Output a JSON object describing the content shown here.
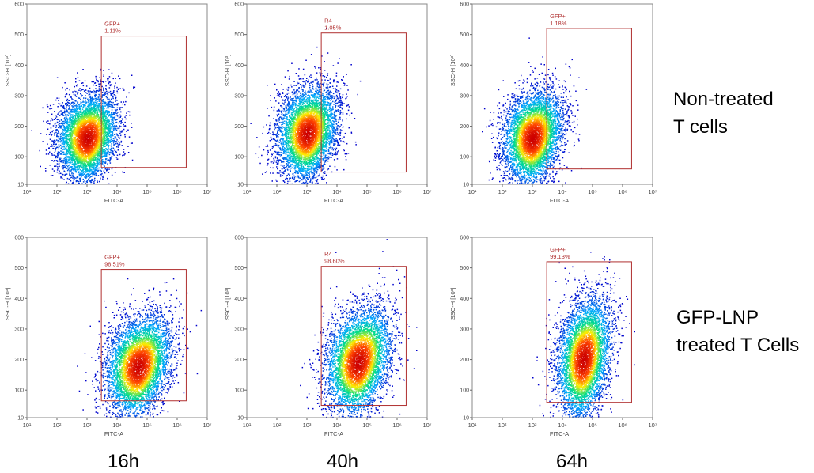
{
  "figure": {
    "row_labels": [
      "Non-treated\nT cells",
      "GFP-LNP\ntreated T Cells"
    ],
    "time_labels": [
      "16h",
      "40h",
      "64h"
    ]
  },
  "chart_data": [
    {
      "type": "scatter",
      "row": 0,
      "col": 0,
      "xlabel": "FITC-A",
      "ylabel": "SSC-H [10³]",
      "xscale": "log",
      "xlim": [
        10,
        10000000
      ],
      "ylim": [
        10,
        600
      ],
      "xticks": [
        "10¹",
        "10²",
        "10³",
        "10⁴",
        "10⁵",
        "10⁶",
        "10⁷"
      ],
      "yticks": [
        "10",
        "100",
        "200",
        "300",
        "400",
        "500",
        "600"
      ],
      "gate": {
        "name": "GFP+",
        "percent": "1.11%",
        "x": [
          3000,
          2000000
        ],
        "y": [
          65,
          495
        ]
      },
      "population": {
        "center_x": 1000,
        "center_y": 160,
        "spread_logx": 0.5,
        "spread_y": 70,
        "tilt": 0.25,
        "events": 5200,
        "density_colors": [
          "#0000cc",
          "#00aaff",
          "#00dd88",
          "#ffee00",
          "#ff4400",
          "#cc0000"
        ]
      }
    },
    {
      "type": "scatter",
      "row": 0,
      "col": 1,
      "xlabel": "FITC-A",
      "ylabel": "SSC-H [10³]",
      "xscale": "log",
      "xlim": [
        10,
        10000000
      ],
      "ylim": [
        10,
        600
      ],
      "xticks": [
        "10¹",
        "10²",
        "10³",
        "10⁴",
        "10⁵",
        "10⁶",
        "10⁷"
      ],
      "yticks": [
        "10",
        "100",
        "200",
        "300",
        "400",
        "500",
        "600"
      ],
      "gate": {
        "name": "R4",
        "percent": "1.05%",
        "x": [
          3000,
          2000000
        ],
        "y": [
          50,
          505
        ]
      },
      "population": {
        "center_x": 1000,
        "center_y": 175,
        "spread_logx": 0.5,
        "spread_y": 75,
        "tilt": 0.28,
        "events": 5200,
        "density_colors": [
          "#0000cc",
          "#00aaff",
          "#00dd88",
          "#ffee00",
          "#ff4400",
          "#cc0000"
        ]
      }
    },
    {
      "type": "scatter",
      "row": 0,
      "col": 2,
      "xlabel": "FITC-A",
      "ylabel": "SSC-H [10³]",
      "xscale": "log",
      "xlim": [
        10,
        10000000
      ],
      "ylim": [
        10,
        600
      ],
      "xticks": [
        "10¹",
        "10²",
        "10³",
        "10⁴",
        "10⁵",
        "10⁶",
        "10⁷"
      ],
      "yticks": [
        "10",
        "100",
        "200",
        "300",
        "400",
        "500",
        "600"
      ],
      "gate": {
        "name": "GFP+",
        "percent": "1.18%",
        "x": [
          3000,
          2000000
        ],
        "y": [
          60,
          520
        ]
      },
      "population": {
        "center_x": 1000,
        "center_y": 160,
        "spread_logx": 0.5,
        "spread_y": 75,
        "tilt": 0.3,
        "events": 5200,
        "density_colors": [
          "#0000cc",
          "#00aaff",
          "#00dd88",
          "#ffee00",
          "#ff4400",
          "#cc0000"
        ]
      }
    },
    {
      "type": "scatter",
      "row": 1,
      "col": 0,
      "xlabel": "FITC-A",
      "ylabel": "SSC-H [10³]",
      "xscale": "log",
      "xlim": [
        10,
        10000000
      ],
      "ylim": [
        10,
        600
      ],
      "xticks": [
        "10¹",
        "10²",
        "10³",
        "10⁴",
        "10⁵",
        "10⁶",
        "10⁷"
      ],
      "yticks": [
        "10",
        "100",
        "200",
        "300",
        "400",
        "500",
        "600"
      ],
      "gate": {
        "name": "GFP+",
        "percent": "98.51%",
        "x": [
          3000,
          2000000
        ],
        "y": [
          65,
          495
        ]
      },
      "population": {
        "center_x": 50000,
        "center_y": 175,
        "spread_logx": 0.55,
        "spread_y": 80,
        "tilt": 0.35,
        "events": 5200,
        "density_colors": [
          "#0000cc",
          "#00aaff",
          "#00dd88",
          "#ffee00",
          "#ff4400",
          "#cc0000"
        ]
      }
    },
    {
      "type": "scatter",
      "row": 1,
      "col": 1,
      "xlabel": "FITC-A",
      "ylabel": "SSC-H [10³]",
      "xscale": "log",
      "xlim": [
        10,
        10000000
      ],
      "ylim": [
        10,
        600
      ],
      "xticks": [
        "10¹",
        "10²",
        "10³",
        "10⁴",
        "10⁵",
        "10⁶",
        "10⁷"
      ],
      "yticks": [
        "10",
        "100",
        "200",
        "300",
        "400",
        "500",
        "600"
      ],
      "gate": {
        "name": "R4",
        "percent": "98.60%",
        "x": [
          3000,
          2000000
        ],
        "y": [
          50,
          505
        ]
      },
      "population": {
        "center_x": 50000,
        "center_y": 190,
        "spread_logx": 0.55,
        "spread_y": 85,
        "tilt": 0.35,
        "events": 5200,
        "density_colors": [
          "#0000cc",
          "#00aaff",
          "#00dd88",
          "#ffee00",
          "#ff4400",
          "#cc0000"
        ]
      }
    },
    {
      "type": "scatter",
      "row": 1,
      "col": 2,
      "xlabel": "FITC-A",
      "ylabel": "SSC-H [10³]",
      "xscale": "log",
      "xlim": [
        10,
        10000000
      ],
      "ylim": [
        10,
        600
      ],
      "xticks": [
        "10¹",
        "10²",
        "10³",
        "10⁴",
        "10⁵",
        "10⁶",
        "10⁷"
      ],
      "yticks": [
        "10",
        "100",
        "200",
        "300",
        "400",
        "500",
        "600"
      ],
      "gate": {
        "name": "GFP+",
        "percent": "99.13%",
        "x": [
          3000,
          2000000
        ],
        "y": [
          60,
          520
        ]
      },
      "population": {
        "center_x": 50000,
        "center_y": 200,
        "spread_logx": 0.45,
        "spread_y": 95,
        "tilt": 0.45,
        "events": 5200,
        "density_colors": [
          "#0000cc",
          "#00aaff",
          "#00dd88",
          "#ffee00",
          "#ff4400",
          "#cc0000"
        ]
      }
    }
  ]
}
